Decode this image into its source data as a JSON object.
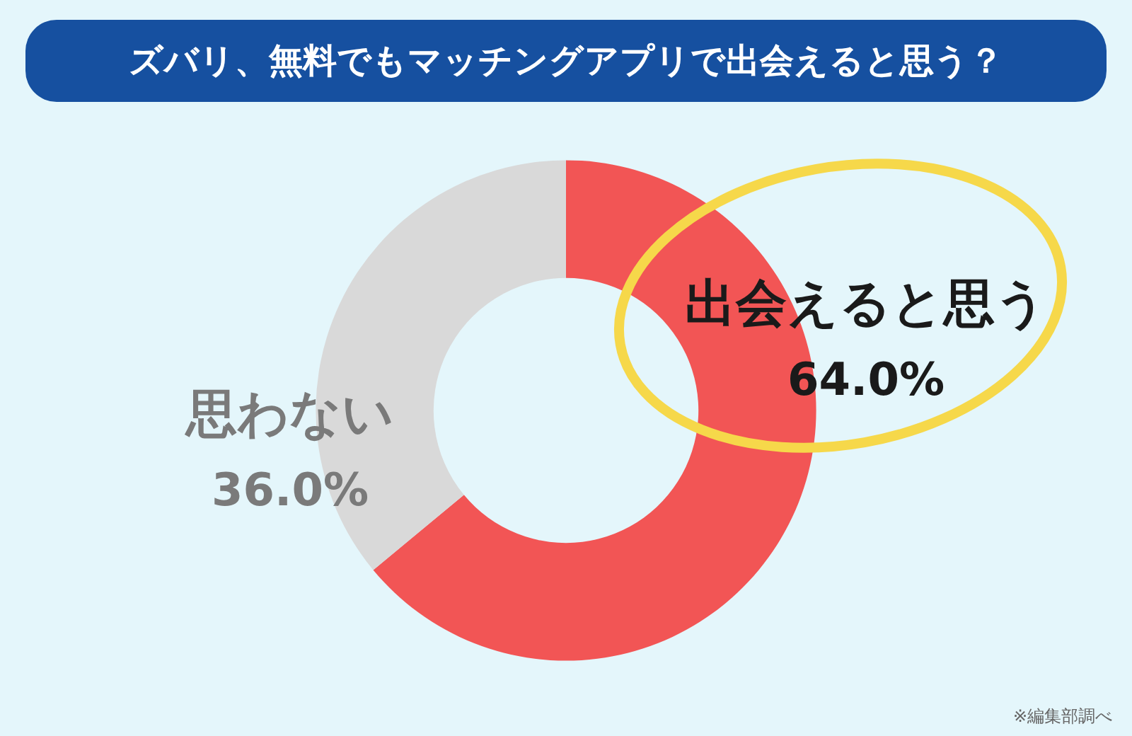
{
  "chart_data": {
    "type": "donut",
    "title": "ズバリ、無料でもマッチングアプリで出会えると思う？",
    "categories": [
      "出会えると思う",
      "思わない"
    ],
    "values": [
      64,
      36
    ],
    "colors": [
      "#f25555",
      "#d9d9d9"
    ],
    "value_labels": [
      "64.0%",
      "36.0%"
    ],
    "legend": false,
    "annotations": [
      "※編集部調べ"
    ]
  }
}
